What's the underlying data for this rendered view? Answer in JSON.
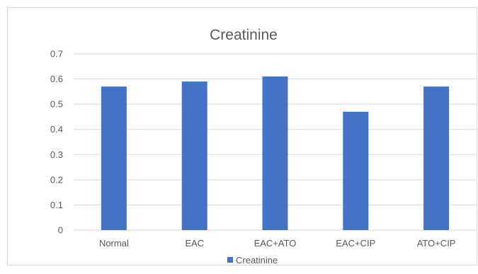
{
  "chart_data": {
    "type": "bar",
    "title": "Creatinine",
    "categories": [
      "Normal",
      "EAC",
      "EAC+ATO",
      "EAC+CIP",
      "ATO+CIP"
    ],
    "series": [
      {
        "name": "Creatinine",
        "values": [
          0.57,
          0.59,
          0.61,
          0.47,
          0.57
        ],
        "color": "#4472c4"
      }
    ],
    "ylim": [
      0,
      0.7
    ],
    "yticks": [
      "0",
      "0.1",
      "0.2",
      "0.3",
      "0.4",
      "0.5",
      "0.6",
      "0.7"
    ],
    "xlabel": "",
    "ylabel": "",
    "grid": true,
    "legend_position": "bottom",
    "gridline_color": "#d9d9d9",
    "text_color": "#595959"
  }
}
